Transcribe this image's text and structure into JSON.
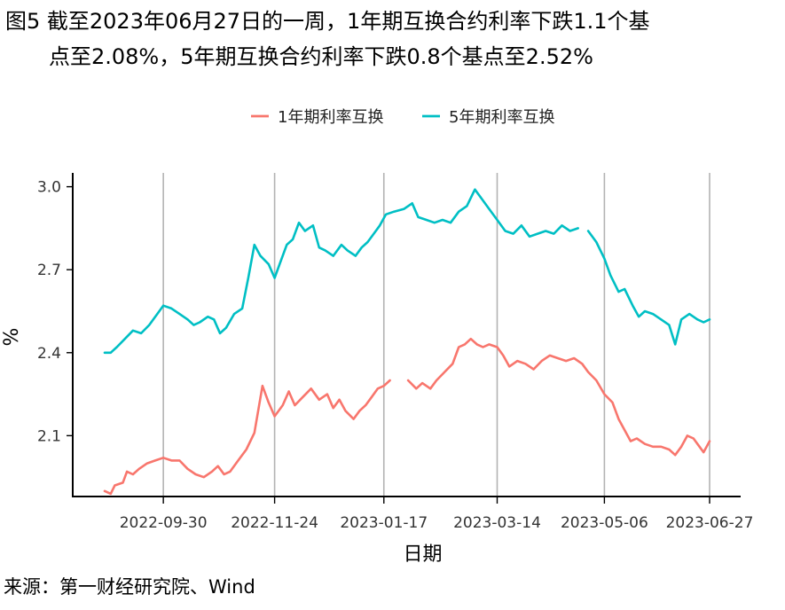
{
  "title_line1": "图5 截至2023年06月27日的一周，1年期互换合约利率下跌1.1个基",
  "title_line2": "点至2.08%，5年期互换合约利率下跌0.8个基点至2.52%",
  "source": "来源：第一财经研究院、Wind",
  "chart_data": {
    "type": "line",
    "xlabel": "日期",
    "ylabel": "%",
    "xlim": [
      "2022-09-01",
      "2023-06-27"
    ],
    "ylim": [
      1.88,
      3.05
    ],
    "y_ticks": [
      2.1,
      2.4,
      2.7,
      3.0
    ],
    "y_tick_labels": [
      "2.1",
      "2.4",
      "2.7",
      "3.0"
    ],
    "x_ticks": [
      "2022-09-30",
      "2022-11-24",
      "2023-01-17",
      "2023-03-14",
      "2023-05-06",
      "2023-06-27"
    ],
    "grid": "vertical",
    "legend_position": "top",
    "series": [
      {
        "name": "1年期利率互换",
        "color": "#F8766D",
        "points": [
          [
            "2022-09-01",
            1.9
          ],
          [
            "2022-09-04",
            1.89
          ],
          [
            "2022-09-06",
            1.92
          ],
          [
            "2022-09-10",
            1.93
          ],
          [
            "2022-09-12",
            1.97
          ],
          [
            "2022-09-15",
            1.96
          ],
          [
            "2022-09-18",
            1.98
          ],
          [
            "2022-09-22",
            2.0
          ],
          [
            "2022-09-26",
            2.01
          ],
          [
            "2022-09-30",
            2.02
          ],
          [
            "2022-10-04",
            2.01
          ],
          [
            "2022-10-08",
            2.01
          ],
          [
            "2022-10-12",
            1.98
          ],
          [
            "2022-10-16",
            1.96
          ],
          [
            "2022-10-20",
            1.95
          ],
          [
            "2022-10-24",
            1.97
          ],
          [
            "2022-10-27",
            1.99
          ],
          [
            "2022-10-30",
            1.96
          ],
          [
            "2022-11-02",
            1.97
          ],
          [
            "2022-11-06",
            2.01
          ],
          [
            "2022-11-10",
            2.05
          ],
          [
            "2022-11-14",
            2.11
          ],
          [
            "2022-11-18",
            2.28
          ],
          [
            "2022-11-21",
            2.22
          ],
          [
            "2022-11-24",
            2.17
          ],
          [
            "2022-11-28",
            2.21
          ],
          [
            "2022-12-01",
            2.26
          ],
          [
            "2022-12-04",
            2.21
          ],
          [
            "2022-12-08",
            2.24
          ],
          [
            "2022-12-12",
            2.27
          ],
          [
            "2022-12-16",
            2.23
          ],
          [
            "2022-12-20",
            2.25
          ],
          [
            "2022-12-23",
            2.2
          ],
          [
            "2022-12-26",
            2.23
          ],
          [
            "2022-12-29",
            2.19
          ],
          [
            "2023-01-02",
            2.16
          ],
          [
            "2023-01-05",
            2.19
          ],
          [
            "2023-01-08",
            2.21
          ],
          [
            "2023-01-11",
            2.24
          ],
          [
            "2023-01-14",
            2.27
          ],
          [
            "2023-01-17",
            2.28
          ],
          [
            "2023-01-20",
            2.3
          ],
          null,
          [
            "2023-01-29",
            2.3
          ],
          [
            "2023-02-02",
            2.27
          ],
          [
            "2023-02-05",
            2.29
          ],
          [
            "2023-02-09",
            2.27
          ],
          [
            "2023-02-12",
            2.3
          ],
          [
            "2023-02-16",
            2.33
          ],
          [
            "2023-02-20",
            2.36
          ],
          [
            "2023-02-23",
            2.42
          ],
          [
            "2023-02-26",
            2.43
          ],
          [
            "2023-03-01",
            2.45
          ],
          [
            "2023-03-04",
            2.43
          ],
          [
            "2023-03-07",
            2.42
          ],
          [
            "2023-03-10",
            2.43
          ],
          [
            "2023-03-14",
            2.42
          ],
          [
            "2023-03-17",
            2.39
          ],
          [
            "2023-03-20",
            2.35
          ],
          [
            "2023-03-24",
            2.37
          ],
          [
            "2023-03-28",
            2.36
          ],
          [
            "2023-04-01",
            2.34
          ],
          [
            "2023-04-05",
            2.37
          ],
          [
            "2023-04-09",
            2.39
          ],
          [
            "2023-04-13",
            2.38
          ],
          [
            "2023-04-17",
            2.37
          ],
          [
            "2023-04-21",
            2.38
          ],
          [
            "2023-04-25",
            2.36
          ],
          [
            "2023-04-28",
            2.33
          ],
          [
            "2023-05-02",
            2.3
          ],
          [
            "2023-05-06",
            2.25
          ],
          [
            "2023-05-10",
            2.22
          ],
          [
            "2023-05-13",
            2.16
          ],
          [
            "2023-05-16",
            2.12
          ],
          [
            "2023-05-19",
            2.08
          ],
          [
            "2023-05-22",
            2.09
          ],
          [
            "2023-05-26",
            2.07
          ],
          [
            "2023-05-30",
            2.06
          ],
          [
            "2023-06-03",
            2.06
          ],
          [
            "2023-06-07",
            2.05
          ],
          [
            "2023-06-10",
            2.03
          ],
          [
            "2023-06-13",
            2.06
          ],
          [
            "2023-06-16",
            2.1
          ],
          [
            "2023-06-19",
            2.09
          ],
          [
            "2023-06-22",
            2.06
          ],
          [
            "2023-06-24",
            2.04
          ],
          [
            "2023-06-27",
            2.08
          ]
        ]
      },
      {
        "name": "5年期利率互换",
        "color": "#00BFC4",
        "points": [
          [
            "2022-09-01",
            2.4
          ],
          [
            "2022-09-04",
            2.4
          ],
          [
            "2022-09-07",
            2.42
          ],
          [
            "2022-09-11",
            2.45
          ],
          [
            "2022-09-15",
            2.48
          ],
          [
            "2022-09-19",
            2.47
          ],
          [
            "2022-09-23",
            2.5
          ],
          [
            "2022-09-27",
            2.54
          ],
          [
            "2022-09-30",
            2.57
          ],
          [
            "2022-10-04",
            2.56
          ],
          [
            "2022-10-08",
            2.54
          ],
          [
            "2022-10-12",
            2.52
          ],
          [
            "2022-10-15",
            2.5
          ],
          [
            "2022-10-18",
            2.51
          ],
          [
            "2022-10-22",
            2.53
          ],
          [
            "2022-10-25",
            2.52
          ],
          [
            "2022-10-28",
            2.47
          ],
          [
            "2022-10-31",
            2.49
          ],
          [
            "2022-11-04",
            2.54
          ],
          [
            "2022-11-08",
            2.56
          ],
          [
            "2022-11-11",
            2.67
          ],
          [
            "2022-11-14",
            2.79
          ],
          [
            "2022-11-17",
            2.75
          ],
          [
            "2022-11-21",
            2.72
          ],
          [
            "2022-11-24",
            2.67
          ],
          [
            "2022-11-27",
            2.73
          ],
          [
            "2022-11-30",
            2.79
          ],
          [
            "2022-12-03",
            2.81
          ],
          [
            "2022-12-06",
            2.87
          ],
          [
            "2022-12-09",
            2.84
          ],
          [
            "2022-12-13",
            2.86
          ],
          [
            "2022-12-16",
            2.78
          ],
          [
            "2022-12-19",
            2.77
          ],
          [
            "2022-12-23",
            2.75
          ],
          [
            "2022-12-27",
            2.79
          ],
          [
            "2022-12-30",
            2.77
          ],
          [
            "2023-01-03",
            2.75
          ],
          [
            "2023-01-06",
            2.78
          ],
          [
            "2023-01-09",
            2.8
          ],
          [
            "2023-01-12",
            2.83
          ],
          [
            "2023-01-15",
            2.86
          ],
          [
            "2023-01-18",
            2.9
          ],
          [
            "2023-01-22",
            2.91
          ],
          [
            "2023-01-27",
            2.92
          ],
          [
            "2023-01-31",
            2.94
          ],
          [
            "2023-02-03",
            2.89
          ],
          [
            "2023-02-07",
            2.88
          ],
          [
            "2023-02-11",
            2.87
          ],
          [
            "2023-02-15",
            2.88
          ],
          [
            "2023-02-19",
            2.87
          ],
          [
            "2023-02-23",
            2.91
          ],
          [
            "2023-02-27",
            2.93
          ],
          [
            "2023-03-03",
            2.99
          ],
          [
            "2023-03-06",
            2.96
          ],
          [
            "2023-03-10",
            2.92
          ],
          [
            "2023-03-14",
            2.88
          ],
          [
            "2023-03-18",
            2.84
          ],
          [
            "2023-03-22",
            2.83
          ],
          [
            "2023-03-26",
            2.86
          ],
          [
            "2023-03-30",
            2.82
          ],
          [
            "2023-04-03",
            2.83
          ],
          [
            "2023-04-07",
            2.84
          ],
          [
            "2023-04-11",
            2.83
          ],
          [
            "2023-04-15",
            2.86
          ],
          [
            "2023-04-19",
            2.84
          ],
          [
            "2023-04-23",
            2.85
          ],
          null,
          [
            "2023-04-28",
            2.84
          ],
          [
            "2023-05-02",
            2.8
          ],
          [
            "2023-05-06",
            2.74
          ],
          [
            "2023-05-09",
            2.68
          ],
          [
            "2023-05-13",
            2.62
          ],
          [
            "2023-05-16",
            2.63
          ],
          [
            "2023-05-20",
            2.57
          ],
          [
            "2023-05-23",
            2.53
          ],
          [
            "2023-05-26",
            2.55
          ],
          [
            "2023-05-30",
            2.54
          ],
          [
            "2023-06-03",
            2.52
          ],
          [
            "2023-06-07",
            2.5
          ],
          [
            "2023-06-10",
            2.43
          ],
          [
            "2023-06-13",
            2.52
          ],
          [
            "2023-06-17",
            2.54
          ],
          [
            "2023-06-21",
            2.52
          ],
          [
            "2023-06-24",
            2.51
          ],
          [
            "2023-06-27",
            2.52
          ]
        ]
      }
    ]
  }
}
